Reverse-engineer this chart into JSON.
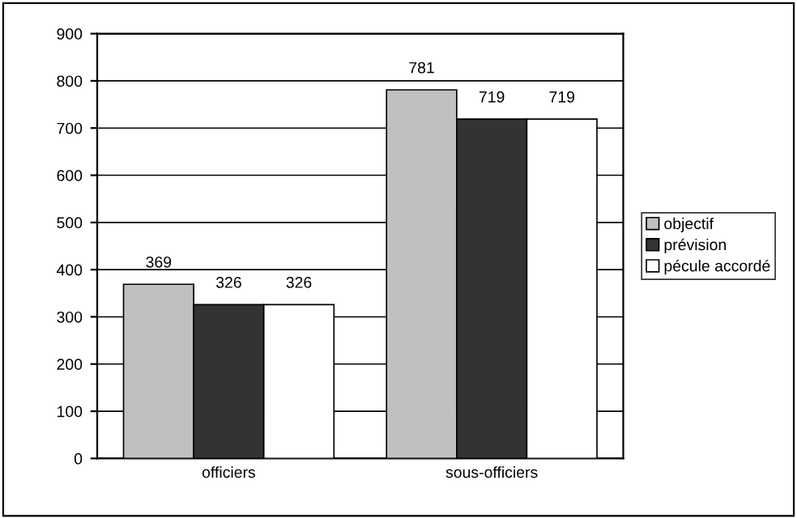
{
  "chart_data": {
    "type": "bar",
    "categories": [
      "officiers",
      "sous-officiers"
    ],
    "series": [
      {
        "name": "objectif",
        "color": "#c0c0c0",
        "values": [
          369,
          781
        ]
      },
      {
        "name": "prévision",
        "color": "#333333",
        "values": [
          326,
          719
        ]
      },
      {
        "name": "pécule accordé",
        "color": "#ffffff",
        "values": [
          326,
          719
        ]
      }
    ],
    "ylim": [
      0,
      900
    ],
    "yticks": [
      0,
      100,
      200,
      300,
      400,
      500,
      600,
      700,
      800,
      900
    ],
    "grid": "y",
    "legend": "right",
    "data_labels": true
  }
}
